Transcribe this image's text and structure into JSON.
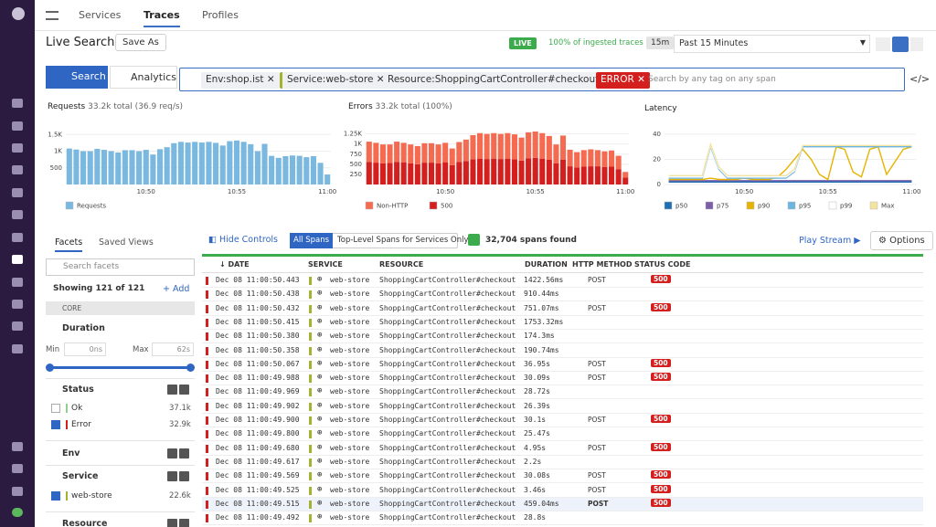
{
  "nav": {
    "tabs": [
      "Services",
      "Traces",
      "Profiles"
    ]
  },
  "header": {
    "title": "Live Search",
    "save": "Save As",
    "live": "LIVE",
    "ingested": "100% of ingested traces",
    "range_short": "15m",
    "range": "Past 15 Minutes"
  },
  "search": {
    "search": "Search",
    "analytics": "Analytics",
    "chips": [
      "Env:shop.ist",
      "Service:web-store",
      "Resource:ShoppingCartController#checkout"
    ],
    "error_chip": "ERROR",
    "placeholder": "Search by any tag on any span"
  },
  "chart_data": [
    {
      "type": "bar",
      "title": "Requests",
      "subtitle": "33.2k total (36.9 req/s)",
      "categories": [
        null,
        null,
        null,
        null,
        null,
        null,
        null,
        null,
        null,
        null,
        null,
        "10:50",
        null,
        null,
        null,
        null,
        null,
        null,
        null,
        null,
        null,
        null,
        null,
        null,
        "10:55",
        null,
        null,
        null,
        null,
        null,
        null,
        null,
        null,
        null,
        null,
        null,
        null,
        "11:00"
      ],
      "series": [
        {
          "name": "Requests",
          "color": "#7ab8e0",
          "values": [
            1080,
            1050,
            1000,
            1000,
            1070,
            1040,
            1000,
            960,
            1030,
            1030,
            1000,
            1040,
            900,
            1060,
            1120,
            1240,
            1280,
            1260,
            1280,
            1260,
            1280,
            1250,
            1170,
            1300,
            1320,
            1280,
            1210,
            1000,
            1220,
            860,
            800,
            850,
            870,
            860,
            820,
            850,
            650,
            300
          ]
        }
      ],
      "ylim": [
        0,
        1700
      ],
      "yticks": [
        500,
        {
          "value": 1000,
          "label": "1K"
        },
        {
          "value": 1500,
          "label": "1.5K"
        }
      ],
      "grid": true
    },
    {
      "type": "bar",
      "title": "Errors",
      "subtitle": "33.2k total (100%)",
      "categories": [
        null,
        null,
        null,
        null,
        null,
        null,
        null,
        null,
        null,
        null,
        null,
        "10:50",
        null,
        null,
        null,
        null,
        null,
        null,
        null,
        null,
        null,
        null,
        null,
        null,
        "10:55",
        null,
        null,
        null,
        null,
        null,
        null,
        null,
        null,
        null,
        null,
        null,
        null,
        "11:00"
      ],
      "series": [
        {
          "name": "Non-HTTP",
          "color": "#f46b52",
          "values": [
            500,
            490,
            470,
            460,
            500,
            480,
            470,
            450,
            480,
            480,
            470,
            480,
            410,
            490,
            530,
            600,
            630,
            620,
            630,
            620,
            630,
            620,
            570,
            640,
            650,
            630,
            590,
            470,
            600,
            410,
            380,
            410,
            420,
            400,
            390,
            400,
            330,
            140
          ]
        },
        {
          "name": "500",
          "color": "#d41f1f",
          "values": [
            560,
            540,
            520,
            530,
            560,
            550,
            520,
            500,
            540,
            540,
            520,
            550,
            480,
            560,
            580,
            620,
            640,
            630,
            640,
            630,
            640,
            620,
            590,
            650,
            660,
            640,
            610,
            520,
            610,
            450,
            420,
            440,
            450,
            450,
            430,
            440,
            380,
            170
          ]
        }
      ],
      "ylim": [
        0,
        1400
      ],
      "yticks": [
        250,
        500,
        750,
        {
          "value": 1000,
          "label": "1K"
        },
        {
          "value": 1250,
          "label": "1.25K"
        }
      ],
      "grid": true
    },
    {
      "type": "line",
      "title": "Latency",
      "categories": [
        null,
        null,
        null,
        null,
        null,
        null,
        null,
        null,
        null,
        "10:50",
        null,
        null,
        null,
        null,
        null,
        null,
        null,
        null,
        null,
        "10:55",
        null,
        null,
        null,
        null,
        null,
        null,
        null,
        null,
        null,
        "11:00"
      ],
      "series": [
        {
          "name": "p50",
          "color": "#1f6fb5",
          "values": [
            2,
            2,
            2,
            2,
            2,
            2,
            2,
            2,
            2,
            2,
            2,
            2,
            2,
            2,
            2,
            2,
            2,
            2,
            2,
            2,
            2,
            2,
            2,
            2,
            2,
            2,
            2,
            2,
            2,
            2
          ]
        },
        {
          "name": "p75",
          "color": "#7b5ea7",
          "values": [
            3,
            3,
            3,
            3,
            3,
            3,
            3,
            3,
            3,
            3,
            3,
            3,
            3,
            3,
            3,
            3,
            3,
            3,
            3,
            3,
            3,
            3,
            3,
            3,
            3,
            3,
            3,
            3,
            3,
            3
          ]
        },
        {
          "name": "p90",
          "color": "#e6b400",
          "values": [
            4,
            4,
            4,
            4,
            4,
            5,
            4,
            4,
            4,
            5,
            4,
            4,
            4,
            6,
            12,
            20,
            28,
            20,
            8,
            4,
            30,
            28,
            10,
            6,
            28,
            30,
            8,
            18,
            28,
            30
          ]
        },
        {
          "name": "p95",
          "color": "#6bb5e0",
          "values": [
            5,
            5,
            5,
            5,
            5,
            30,
            12,
            5,
            5,
            5,
            5,
            5,
            5,
            5,
            5,
            10,
            30,
            30,
            30,
            30,
            30,
            30,
            30,
            30,
            30,
            30,
            30,
            30,
            30,
            30
          ]
        },
        {
          "name": "p99",
          "color": "#ffffff",
          "values": [
            6,
            6,
            6,
            6,
            6,
            31,
            13,
            6,
            6,
            6,
            6,
            6,
            6,
            6,
            6,
            11,
            31,
            31,
            31,
            31,
            31,
            31,
            31,
            31,
            31,
            31,
            31,
            31,
            31,
            31
          ]
        },
        {
          "name": "Max",
          "color": "#f3e3a0",
          "values": [
            7,
            7,
            7,
            7,
            7,
            32,
            14,
            7,
            7,
            7,
            7,
            7,
            7,
            7,
            7,
            12,
            31,
            31,
            31,
            31,
            31,
            31,
            31,
            31,
            31,
            31,
            31,
            31,
            31,
            31
          ]
        }
      ],
      "ylim": [
        0,
        45
      ],
      "yticks": [
        0,
        20,
        40
      ],
      "grid": true
    }
  ],
  "facets": {
    "tabs": [
      "Facets",
      "Saved Views"
    ],
    "search": "Search facets",
    "showing": "Showing 121 of 121",
    "add": "Add",
    "core": "CORE",
    "duration": {
      "title": "Duration",
      "min_label": "Min",
      "min": "0ns",
      "max_label": "Max",
      "max": "62s"
    },
    "status": {
      "title": "Status",
      "items": [
        {
          "name": "Ok",
          "count": "37.1k"
        },
        {
          "name": "Error",
          "count": "32.9k"
        }
      ]
    },
    "env": "Env",
    "service": {
      "title": "Service",
      "items": [
        {
          "name": "web-store",
          "count": "22.6k"
        }
      ]
    },
    "resource": "Resource"
  },
  "controls": {
    "hide": "Hide Controls",
    "all": "All Spans",
    "top": "Top-Level Spans for Services Only",
    "found": "32,704 spans found",
    "play": "Play Stream",
    "options": "Options"
  },
  "table": {
    "columns": [
      "DATE",
      "SERVICE",
      "RESOURCE",
      "DURATION",
      "HTTP METHOD",
      "STATUS CODE"
    ],
    "rows": [
      {
        "date": "Dec 08 11:00:50.443",
        "service": "web-store",
        "resource": "ShoppingCartController#checkout",
        "duration": "1422.56ms",
        "method": "POST",
        "status": "500"
      },
      {
        "date": "Dec 08 11:00:50.438",
        "service": "web-store",
        "resource": "ShoppingCartController#checkout",
        "duration": "910.44ms"
      },
      {
        "date": "Dec 08 11:00:50.432",
        "service": "web-store",
        "resource": "ShoppingCartController#checkout",
        "duration": "751.07ms",
        "method": "POST",
        "status": "500"
      },
      {
        "date": "Dec 08 11:00:50.415",
        "service": "web-store",
        "resource": "ShoppingCartController#checkout",
        "duration": "1753.32ms"
      },
      {
        "date": "Dec 08 11:00:50.380",
        "service": "web-store",
        "resource": "ShoppingCartController#checkout",
        "duration": "174.3ms"
      },
      {
        "date": "Dec 08 11:00:50.358",
        "service": "web-store",
        "resource": "ShoppingCartController#checkout",
        "duration": "190.74ms"
      },
      {
        "date": "Dec 08 11:00:50.067",
        "service": "web-store",
        "resource": "ShoppingCartController#checkout",
        "duration": "36.95s",
        "method": "POST",
        "status": "500"
      },
      {
        "date": "Dec 08 11:00:49.988",
        "service": "web-store",
        "resource": "ShoppingCartController#checkout",
        "duration": "30.09s",
        "method": "POST",
        "status": "500"
      },
      {
        "date": "Dec 08 11:00:49.969",
        "service": "web-store",
        "resource": "ShoppingCartController#checkout",
        "duration": "28.72s"
      },
      {
        "date": "Dec 08 11:00:49.902",
        "service": "web-store",
        "resource": "ShoppingCartController#checkout",
        "duration": "26.39s"
      },
      {
        "date": "Dec 08 11:00:49.900",
        "service": "web-store",
        "resource": "ShoppingCartController#checkout",
        "duration": "30.1s",
        "method": "POST",
        "status": "500"
      },
      {
        "date": "Dec 08 11:00:49.800",
        "service": "web-store",
        "resource": "ShoppingCartController#checkout",
        "duration": "25.47s"
      },
      {
        "date": "Dec 08 11:00:49.680",
        "service": "web-store",
        "resource": "ShoppingCartController#checkout",
        "duration": "4.95s",
        "method": "POST",
        "status": "500"
      },
      {
        "date": "Dec 08 11:00:49.617",
        "service": "web-store",
        "resource": "ShoppingCartController#checkout",
        "duration": "2.2s"
      },
      {
        "date": "Dec 08 11:00:49.569",
        "service": "web-store",
        "resource": "ShoppingCartController#checkout",
        "duration": "30.08s",
        "method": "POST",
        "status": "500"
      },
      {
        "date": "Dec 08 11:00:49.525",
        "service": "web-store",
        "resource": "ShoppingCartController#checkout",
        "duration": "3.46s",
        "method": "POST",
        "status": "500"
      },
      {
        "date": "Dec 08 11:00:49.515",
        "service": "web-store",
        "resource": "ShoppingCartController#checkout",
        "duration": "459.04ms",
        "method": "POST",
        "status": "500"
      },
      {
        "date": "Dec 08 11:00:49.492",
        "service": "web-store",
        "resource": "ShoppingCartController#checkout",
        "duration": "28.8s"
      }
    ]
  }
}
